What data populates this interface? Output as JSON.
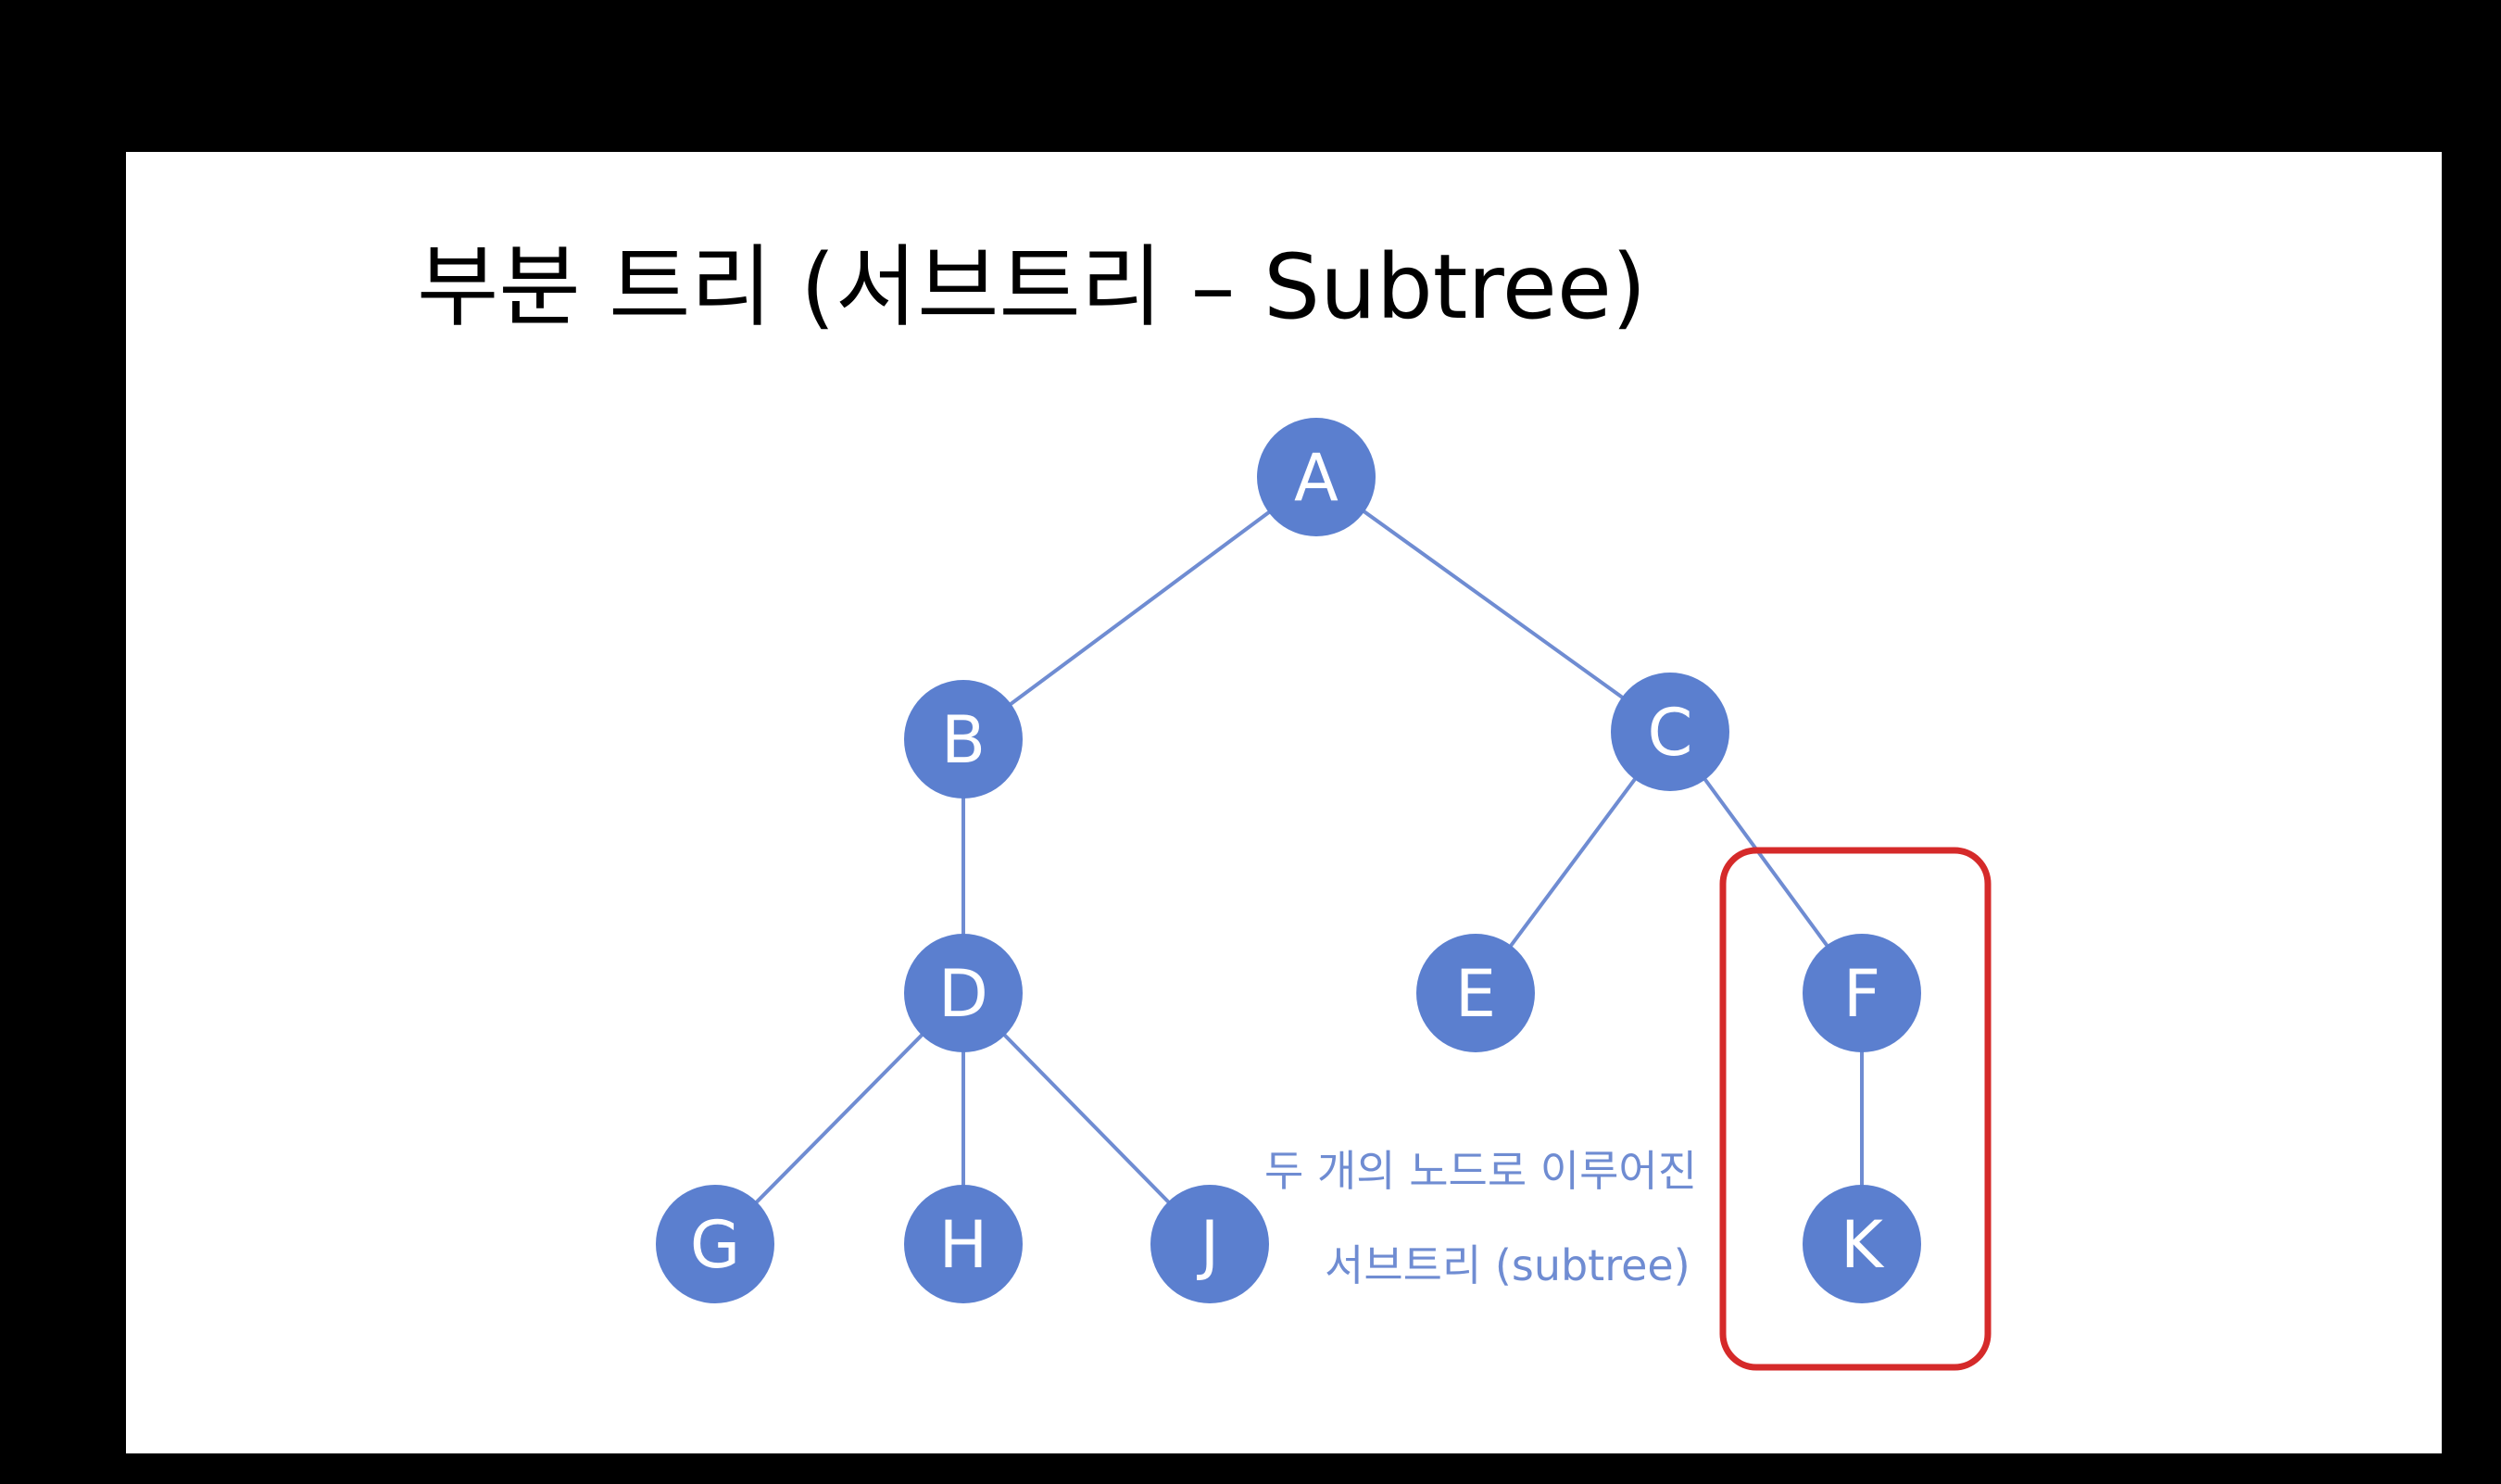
{
  "slide": {
    "title": "부분 트리 (서브트리 – Subtree)"
  },
  "tree": {
    "nodes": [
      {
        "id": "A",
        "label": "A"
      },
      {
        "id": "B",
        "label": "B"
      },
      {
        "id": "C",
        "label": "C"
      },
      {
        "id": "D",
        "label": "D"
      },
      {
        "id": "E",
        "label": "E"
      },
      {
        "id": "F",
        "label": "F"
      },
      {
        "id": "G",
        "label": "G"
      },
      {
        "id": "H",
        "label": "H"
      },
      {
        "id": "J",
        "label": "J"
      },
      {
        "id": "K",
        "label": "K"
      }
    ],
    "edges": [
      [
        "A",
        "B"
      ],
      [
        "A",
        "C"
      ],
      [
        "B",
        "D"
      ],
      [
        "C",
        "E"
      ],
      [
        "C",
        "F"
      ],
      [
        "D",
        "G"
      ],
      [
        "D",
        "H"
      ],
      [
        "D",
        "J"
      ],
      [
        "F",
        "K"
      ]
    ],
    "highlighted_subtree": [
      "F",
      "K"
    ],
    "node_color": "#5b7fcf",
    "edge_color": "#6f8cd2",
    "highlight_color": "#d52a2a"
  },
  "caption": {
    "line1": "두 개의 노드로 이루어진",
    "line2": "서브트리 (subtree)"
  }
}
